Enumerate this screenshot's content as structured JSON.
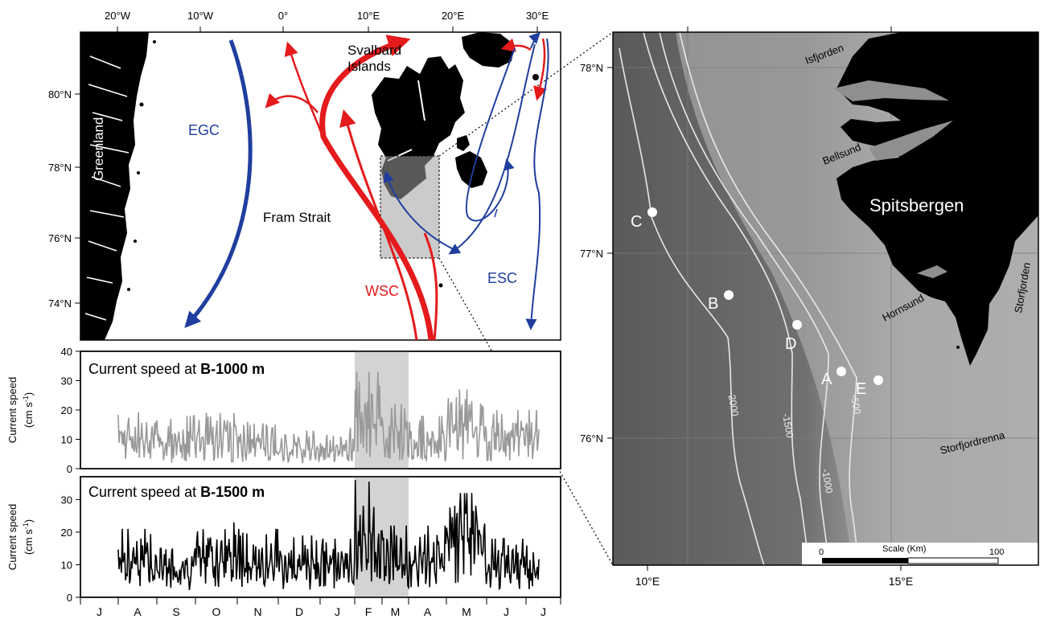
{
  "overview_map": {
    "lon_labels": [
      "20°W",
      "10°W",
      "0°",
      "10°E",
      "20°E",
      "30°E"
    ],
    "lat_labels": [
      "80°N",
      "78°N",
      "76°N",
      "74°N"
    ],
    "labels": {
      "greenland": "Greenland",
      "svalbard_line1": "Svalbard",
      "svalbard_line2": "Islands",
      "egc": "EGC",
      "fram": "Fram Strait",
      "wsc": "WSC",
      "esc": "ESC"
    },
    "colors": {
      "warm_current": "#e41a1c",
      "cold_current": "#1f3e9e"
    }
  },
  "detail_map": {
    "lat_labels": [
      "78°N",
      "77°N",
      "76°N"
    ],
    "lon_labels": [
      "10°E",
      "15°E"
    ],
    "places": {
      "isfjorden": "Isfjorden",
      "bellsund": "Bellsund",
      "spitsbergen": "Spitsbergen",
      "hornsund": "Hornsund",
      "storfjorden": "Storfjorden",
      "storfjordrenna": "Storfjordrenna"
    },
    "stations": [
      "C",
      "B",
      "D",
      "A",
      "E"
    ],
    "contours": [
      "-2000",
      "-1500",
      "-1000",
      "-500"
    ],
    "scale": {
      "title": "Scale (Km)",
      "min": "0",
      "max": "100"
    }
  },
  "chart_data": [
    {
      "type": "line",
      "title_prefix": "Current speed at ",
      "title_bold": "B-1000 m",
      "ylabel": "Current speed",
      "yunit_pre": "(cm s",
      "yunit_exp": "-1",
      "yunit_post": ")",
      "ylim": [
        0,
        40
      ],
      "yticks": [
        "0",
        "10",
        "20",
        "30",
        "40"
      ],
      "color": "#999999",
      "shaded_months": [
        "F",
        "M"
      ],
      "monthly_peak": [
        18,
        20,
        18,
        19,
        17,
        13,
        14,
        33,
        22,
        18,
        27,
        20
      ],
      "monthly_mean": [
        11,
        10,
        4,
        8,
        7,
        6,
        6,
        13,
        9,
        8,
        10,
        8
      ]
    },
    {
      "type": "line",
      "title_prefix": "Current speed at ",
      "title_bold": "B-1500 m",
      "ylabel": "Current speed",
      "yunit_pre": "(cm s",
      "yunit_exp": "-1",
      "yunit_post": ")",
      "ylim": [
        0,
        37
      ],
      "yticks": [
        "0",
        "10",
        "20",
        "30"
      ],
      "color": "#000000",
      "shaded_months": [
        "F",
        "M"
      ],
      "monthly_peak": [
        18,
        21,
        15,
        23,
        21,
        19,
        18,
        36,
        22,
        22,
        32,
        18
      ],
      "monthly_mean": [
        10,
        10,
        7,
        9,
        9,
        7,
        8,
        16,
        10,
        10,
        11,
        8
      ]
    }
  ],
  "time_axis": {
    "months": [
      "J",
      "A",
      "S",
      "O",
      "N",
      "D",
      "J",
      "F",
      "M",
      "A",
      "M",
      "J",
      "J"
    ]
  }
}
